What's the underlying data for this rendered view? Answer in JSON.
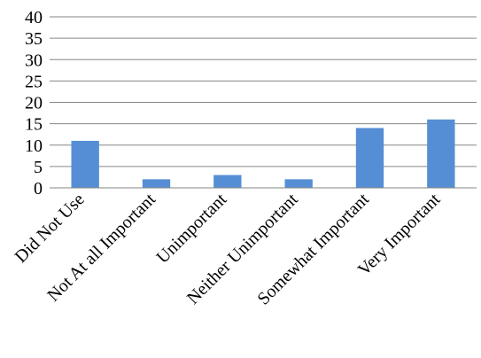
{
  "chart_data": {
    "type": "bar",
    "categories": [
      "Did Not Use",
      "Not At all Important",
      "Unimportant",
      "Neither Unimportant",
      "Somewhat Important",
      "Very Important"
    ],
    "values": [
      11,
      2,
      3,
      2,
      14,
      16
    ],
    "ylim": [
      0,
      40
    ],
    "yticks": [
      0,
      5,
      10,
      15,
      20,
      25,
      30,
      35,
      40
    ],
    "grid": true,
    "legend": "none",
    "colors": {
      "bar": "#558ED5",
      "grid": "#868686",
      "axis": "#868686"
    }
  }
}
